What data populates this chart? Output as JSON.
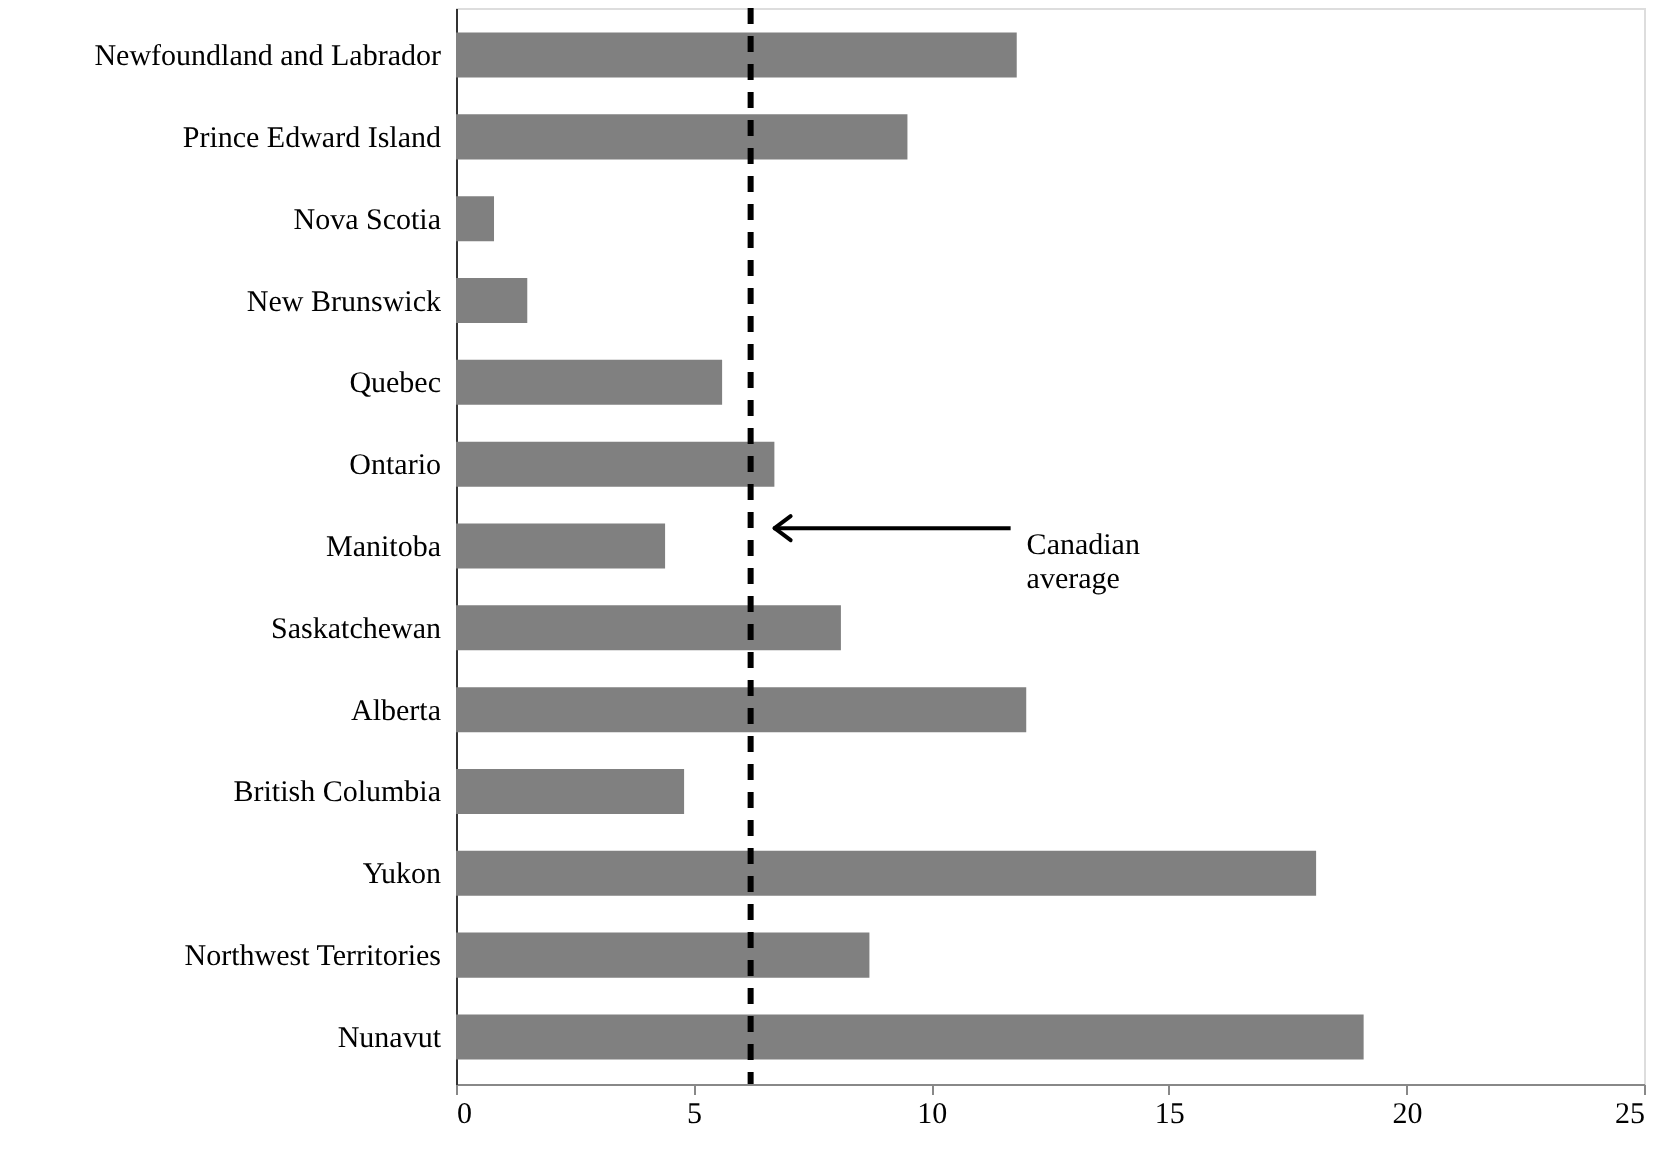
{
  "chart_data": {
    "type": "bar",
    "orientation": "horizontal",
    "categories": [
      "Newfoundland and Labrador",
      "Prince Edward Island",
      "Nova Scotia",
      "New Brunswick",
      "Quebec",
      "Ontario",
      "Manitoba",
      "Saskatchewan",
      "Alberta",
      "British Columbia",
      "Yukon",
      "Northwest Territories",
      "Nunavut"
    ],
    "values": [
      11.8,
      9.5,
      0.8,
      1.5,
      5.6,
      6.7,
      4.4,
      8.1,
      12.0,
      4.8,
      18.1,
      8.7,
      19.1
    ],
    "color": "#808080",
    "xlim": [
      0,
      25
    ],
    "xticks": [
      0,
      5,
      10,
      15,
      20,
      25
    ],
    "ref_lines": [
      {
        "axis": "x",
        "value": 6.2,
        "label": "Canadian\naverage",
        "color": "#000000",
        "line_style": "dashed"
      }
    ],
    "grid": false
  }
}
